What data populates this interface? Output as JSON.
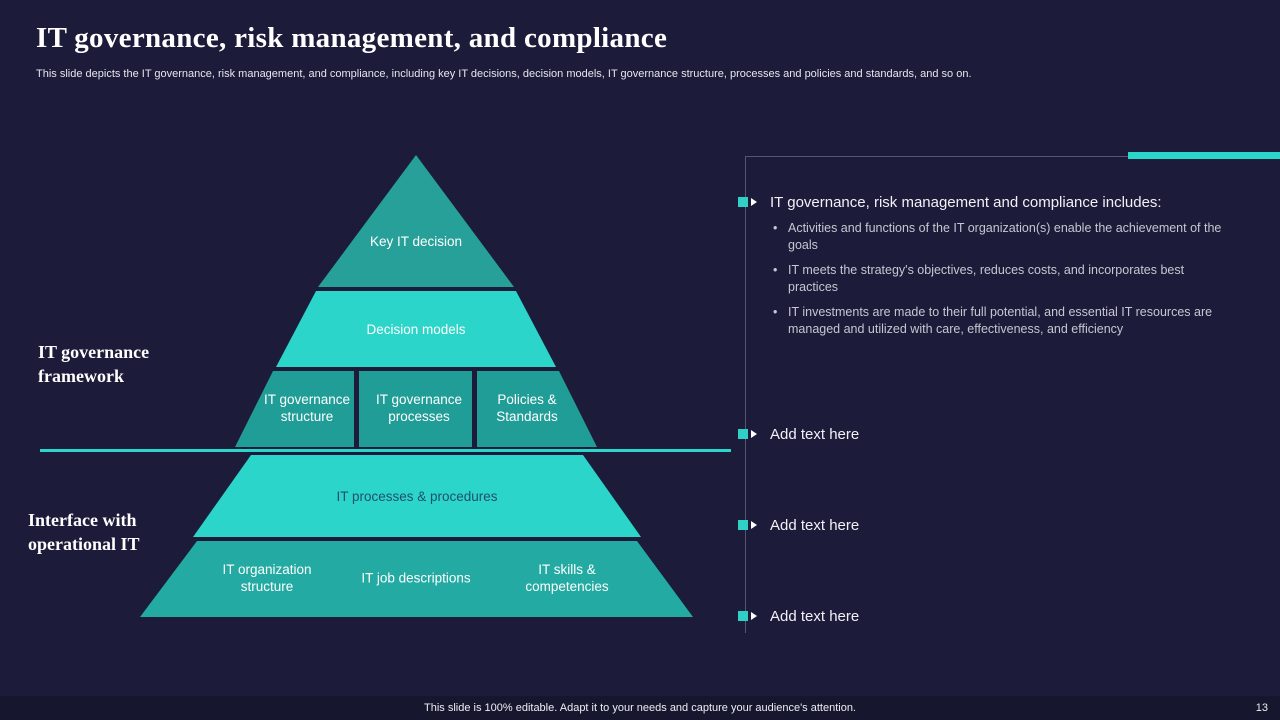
{
  "slide": {
    "title": "IT governance, risk management, and compliance",
    "subtitle": "This slide depicts the IT governance, risk management, and compliance, including key IT decisions, decision models, IT governance structure, processes and policies and standards, and so on.",
    "footer": "This slide is 100% editable. Adapt it to your needs and capture your audience's attention.",
    "page_number": "13"
  },
  "pyramid": {
    "side_labels": {
      "top": "IT governance framework",
      "bottom": "Interface with operational IT"
    },
    "levels": [
      {
        "label": "Key IT decision"
      },
      {
        "label": "Decision models"
      },
      {
        "boxes": [
          "IT governance structure",
          "IT governance processes",
          "Policies & Standards"
        ]
      },
      {
        "label": "IT processes & procedures"
      },
      {
        "boxes": [
          "IT organization structure",
          "IT job descriptions",
          "IT skills & competencies"
        ]
      }
    ]
  },
  "right_panel": {
    "items": [
      {
        "heading": "IT governance, risk management and compliance includes:",
        "bullets": [
          "Activities and functions of the IT organization(s) enable the achievement of the goals",
          "IT meets the strategy's objectives, reduces costs, and incorporates best practices",
          "IT investments are made to their full potential, and essential IT resources are managed and utilized with care, effectiveness, and efficiency"
        ]
      },
      {
        "heading": "Add text here"
      },
      {
        "heading": "Add text here"
      },
      {
        "heading": "Add text here"
      }
    ]
  },
  "colors": {
    "background": "#1c1b39",
    "accent_bright": "#2cd5c9",
    "teal_mid": "#23aaa2",
    "teal_dark": "#1f9d96",
    "panel_line": "#565670"
  }
}
